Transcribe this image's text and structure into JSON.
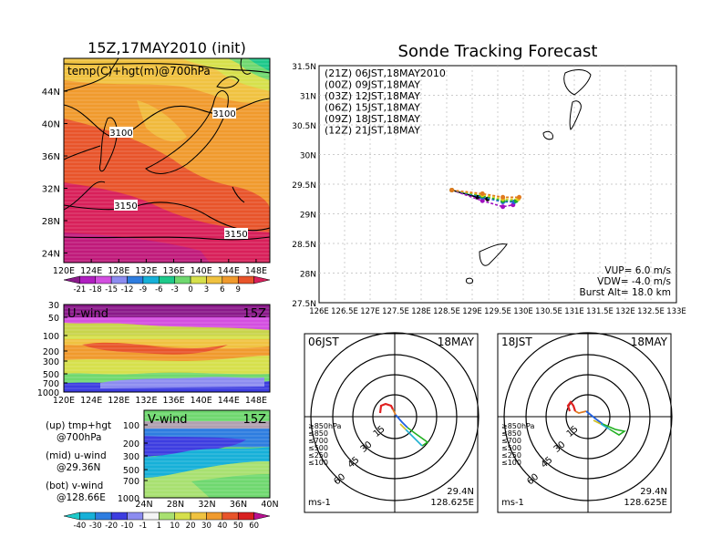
{
  "left": {
    "title": "15Z,17MAY2010 (init)",
    "map": {
      "label": "temp(C)+hgt(m)@700hPa",
      "lat_ticks": [
        "44N",
        "40N",
        "36N",
        "32N",
        "28N",
        "24N"
      ],
      "lon_ticks": [
        "120E",
        "124E",
        "128E",
        "132E",
        "136E",
        "140E",
        "144E",
        "148E"
      ],
      "contours": [
        "3100",
        "3100",
        "3150",
        "3150"
      ]
    },
    "temp_colorbar": {
      "labels": [
        "-21",
        "-18",
        "-15",
        "-12",
        "-9",
        "-6",
        "-3",
        "0",
        "3",
        "6",
        "9"
      ],
      "colors": [
        "#8a1a8a",
        "#b01fc0",
        "#d34fe0",
        "#8c8cf0",
        "#2e7de0",
        "#16b0d8",
        "#1ec98a",
        "#6fd86f",
        "#d6e04b",
        "#f0c240",
        "#f09a2d",
        "#e8542a",
        "#d8205a"
      ]
    },
    "u_panel": {
      "label": "U-wind",
      "time": "15Z",
      "p_ticks": [
        "30",
        "50",
        "100",
        "200",
        "300",
        "500",
        "700",
        "1000"
      ],
      "lon_ticks": [
        "120E",
        "124E",
        "128E",
        "132E",
        "136E",
        "140E",
        "144E",
        "148E"
      ]
    },
    "v_panel": {
      "label": "V-wind",
      "time": "15Z",
      "p_ticks": [
        "100",
        "200",
        "300",
        "500",
        "700",
        "1000"
      ],
      "lat_ticks": [
        "24N",
        "28N",
        "32N",
        "36N",
        "40N"
      ]
    },
    "legend_notes": [
      {
        "a": "(up) tmp+hgt",
        "b": "@700hPa"
      },
      {
        "a": "(mid) u-wind",
        "b": "@29.36N"
      },
      {
        "a": "(bot) v-wind",
        "b": "@128.66E"
      }
    ],
    "wind_colorbar": {
      "labels": [
        "-40",
        "-30",
        "-20",
        "-10",
        "-1",
        "1",
        "10",
        "20",
        "30",
        "40",
        "50",
        "60"
      ],
      "colors": [
        "#1ec9c9",
        "#16b0d8",
        "#2e7de0",
        "#3d3de0",
        "#8c8cf0",
        "#f4f4f4",
        "#a8e070",
        "#d6e04b",
        "#f0c240",
        "#f09a2d",
        "#e8542a",
        "#d82020",
        "#b81090"
      ]
    }
  },
  "right": {
    "title": "Sonde Tracking Forecast",
    "track_legend": [
      {
        "text": "(21Z) 06JST,18MAY2010",
        "color": "#000000"
      },
      {
        "text": "(00Z) 09JST,18MAY",
        "color": "#a010c0"
      },
      {
        "text": "(03Z) 12JST,18MAY",
        "color": "#2060e0"
      },
      {
        "text": "(06Z) 15JST,18MAY",
        "color": "#20b020"
      },
      {
        "text": "(09Z) 18JST,18MAY",
        "color": "#e0d020"
      },
      {
        "text": "(12Z) 21JST,18MAY",
        "color": "#e07a20"
      }
    ],
    "lat_ticks": [
      "31.5N",
      "31N",
      "30.5N",
      "30N",
      "29.5N",
      "29N",
      "28.5N",
      "28N",
      "27.5N"
    ],
    "lon_ticks": [
      "126E",
      "126.5E",
      "127E",
      "127.5E",
      "128E",
      "128.5E",
      "129E",
      "129.5E",
      "130E",
      "130.5E",
      "131E",
      "131.5E",
      "132E",
      "132.5E",
      "133E"
    ],
    "params": [
      "VUP= 6.0 m/s",
      "VDW= -4.0 m/s",
      "Burst Alt= 18.0 km"
    ]
  },
  "hodographs": [
    {
      "time": "06JST",
      "date": "18MAY",
      "units": "ms-1",
      "lat": "29.4N",
      "lon": "128.625E",
      "ring_labels": [
        "15",
        "30",
        "45",
        "60"
      ],
      "levels": [
        {
          "text": "≥850hPa",
          "color": "#e02020"
        },
        {
          "text": "≤850",
          "color": "#e07a20"
        },
        {
          "text": "≤700",
          "color": "#d0c020"
        },
        {
          "text": "≤500",
          "color": "#20b020"
        },
        {
          "text": "≤250",
          "color": "#20b0d0"
        },
        {
          "text": "≤100",
          "color": "#2060e0"
        }
      ]
    },
    {
      "time": "18JST",
      "date": "18MAY",
      "units": "ms-1",
      "lat": "29.4N",
      "lon": "128.625E",
      "ring_labels": [
        "15",
        "30",
        "45",
        "60"
      ],
      "levels": [
        {
          "text": "≥850hPa",
          "color": "#e02020"
        },
        {
          "text": "≤850",
          "color": "#e07a20"
        },
        {
          "text": "≤700",
          "color": "#d0c020"
        },
        {
          "text": "≤500",
          "color": "#20b020"
        },
        {
          "text": "≤250",
          "color": "#20b0d0"
        },
        {
          "text": "≤100",
          "color": "#2060e0"
        }
      ]
    }
  ],
  "chart_data": [
    {
      "type": "line",
      "title": "Sonde Tracking Forecast",
      "xlabel": "",
      "ylabel": "",
      "xlim": [
        126,
        133
      ],
      "ylim": [
        27.5,
        31.5
      ],
      "series": [
        {
          "name": "(21Z) 06JST,18MAY2010",
          "x": [
            128.6,
            129.1,
            129.3
          ],
          "y": [
            29.4,
            29.28,
            29.25
          ]
        },
        {
          "name": "(00Z) 09JST,18MAY",
          "x": [
            128.6,
            129.2,
            129.6,
            129.8
          ],
          "y": [
            29.4,
            29.22,
            29.12,
            29.15
          ]
        },
        {
          "name": "(03Z) 12JST,18MAY",
          "x": [
            128.6,
            129.2,
            129.6,
            129.82
          ],
          "y": [
            29.4,
            29.28,
            29.2,
            29.2
          ]
        },
        {
          "name": "(06Z) 15JST,18MAY",
          "x": [
            128.6,
            129.2,
            129.6,
            129.86
          ],
          "y": [
            29.4,
            29.3,
            29.22,
            29.22
          ]
        },
        {
          "name": "(09Z) 18JST,18MAY",
          "x": [
            128.6,
            129.2,
            129.6,
            129.9
          ],
          "y": [
            29.4,
            29.32,
            29.25,
            29.25
          ]
        },
        {
          "name": "(12Z) 21JST,18MAY",
          "x": [
            128.6,
            129.2,
            129.6,
            129.92
          ],
          "y": [
            29.4,
            29.34,
            29.28,
            29.28
          ]
        }
      ]
    }
  ]
}
